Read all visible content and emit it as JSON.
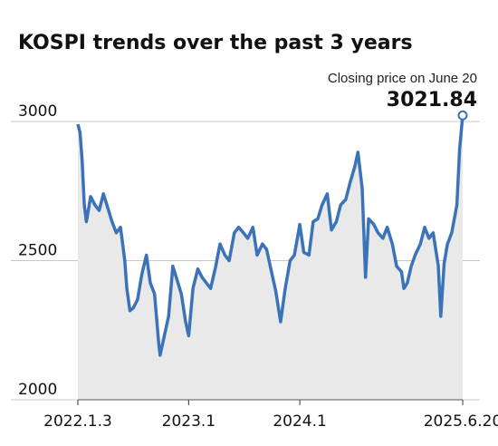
{
  "chart_data": {
    "type": "area",
    "title": "KOSPI trends over the past 3 years",
    "annotation": {
      "label": "Closing price on June 20",
      "value": "3021.84"
    },
    "ylim": [
      2000,
      3000
    ],
    "yticks": [
      2000,
      2500,
      3000
    ],
    "ytick_labels": [
      "2000",
      "2500",
      "3000"
    ],
    "xlim": [
      "2022-01-03",
      "2025-06-20"
    ],
    "xticks": [
      "2022-01-03",
      "2023-01-02",
      "2024-01-02",
      "2025-06-20"
    ],
    "xtick_labels": [
      "2022.1.3",
      "2023.1",
      "2024.1",
      "2025.6.20"
    ],
    "grid": true,
    "colors": {
      "line": "#3b73b9",
      "fill": "#e9e9e9",
      "grid": "#c8c8c8",
      "axis": "#555555",
      "marker_fill": "#ffffff"
    },
    "series": [
      {
        "x": [
          "2022-01-03",
          "2022-01-10",
          "2022-01-17",
          "2022-01-24",
          "2022-01-31",
          "2022-02-14",
          "2022-02-28",
          "2022-03-14",
          "2022-03-28",
          "2022-04-11",
          "2022-04-25",
          "2022-05-09",
          "2022-05-23",
          "2022-06-06",
          "2022-06-13",
          "2022-06-23",
          "2022-07-04",
          "2022-07-18",
          "2022-08-01",
          "2022-08-16",
          "2022-08-29",
          "2022-09-12",
          "2022-09-26",
          "2022-09-30",
          "2022-10-14",
          "2022-10-28",
          "2022-11-11",
          "2022-11-25",
          "2022-12-09",
          "2022-12-23",
          "2023-01-02",
          "2023-01-16",
          "2023-02-01",
          "2023-02-15",
          "2023-03-01",
          "2023-03-15",
          "2023-04-01",
          "2023-04-15",
          "2023-05-01",
          "2023-05-15",
          "2023-06-01",
          "2023-06-15",
          "2023-07-01",
          "2023-07-15",
          "2023-08-01",
          "2023-08-15",
          "2023-09-01",
          "2023-09-15",
          "2023-10-01",
          "2023-10-15",
          "2023-10-31",
          "2023-11-15",
          "2023-12-01",
          "2023-12-15",
          "2024-01-02",
          "2024-01-15",
          "2024-02-01",
          "2024-02-15",
          "2024-03-01",
          "2024-03-15",
          "2024-04-01",
          "2024-04-15",
          "2024-05-01",
          "2024-05-15",
          "2024-06-01",
          "2024-06-15",
          "2024-07-01",
          "2024-07-11",
          "2024-07-25",
          "2024-08-05",
          "2024-08-15",
          "2024-09-01",
          "2024-09-15",
          "2024-10-01",
          "2024-10-15",
          "2024-11-01",
          "2024-11-15",
          "2024-12-01",
          "2024-12-09",
          "2024-12-20",
          "2025-01-02",
          "2025-01-15",
          "2025-02-01",
          "2025-02-15",
          "2025-03-01",
          "2025-03-15",
          "2025-04-01",
          "2025-04-09",
          "2025-04-20",
          "2025-05-01",
          "2025-05-15",
          "2025-06-01",
          "2025-06-10",
          "2025-06-20"
        ],
        "y": [
          2990,
          2960,
          2860,
          2700,
          2640,
          2730,
          2700,
          2680,
          2740,
          2690,
          2640,
          2600,
          2620,
          2500,
          2400,
          2320,
          2330,
          2360,
          2450,
          2520,
          2420,
          2380,
          2200,
          2160,
          2230,
          2300,
          2480,
          2430,
          2380,
          2280,
          2230,
          2400,
          2470,
          2440,
          2420,
          2400,
          2480,
          2560,
          2520,
          2500,
          2600,
          2620,
          2600,
          2580,
          2620,
          2520,
          2560,
          2540,
          2460,
          2390,
          2280,
          2400,
          2500,
          2520,
          2630,
          2530,
          2520,
          2640,
          2650,
          2700,
          2740,
          2610,
          2640,
          2700,
          2720,
          2780,
          2840,
          2890,
          2760,
          2440,
          2650,
          2630,
          2600,
          2580,
          2620,
          2560,
          2480,
          2460,
          2400,
          2420,
          2480,
          2520,
          2560,
          2620,
          2580,
          2600,
          2480,
          2300,
          2490,
          2560,
          2600,
          2700,
          2900,
          3021.84
        ]
      }
    ]
  }
}
